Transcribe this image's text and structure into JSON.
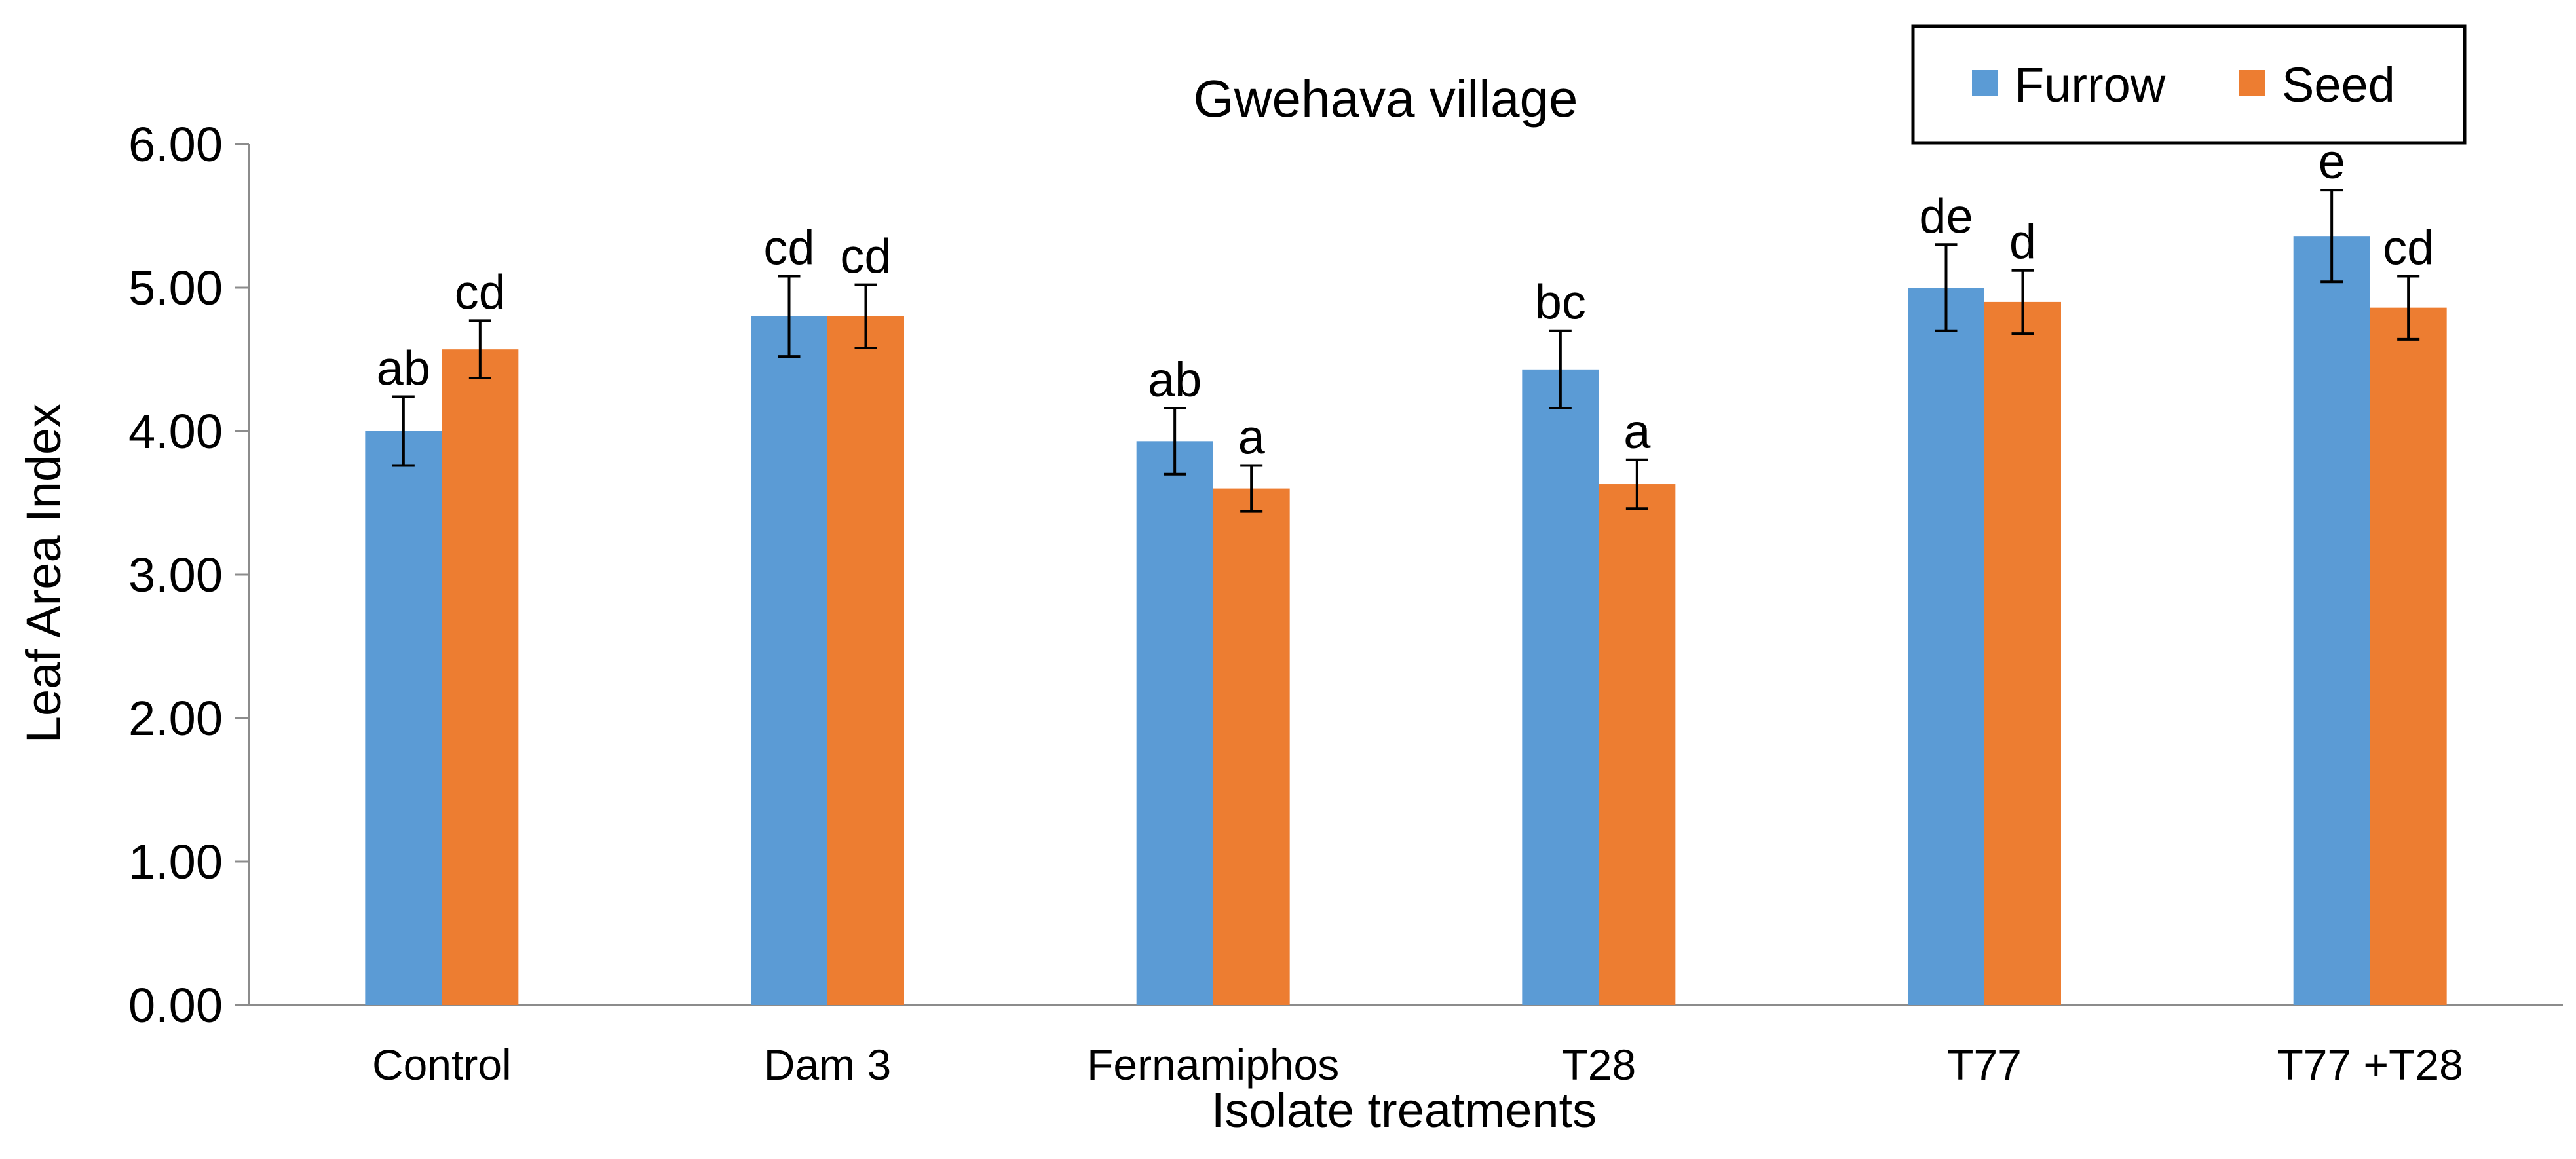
{
  "chart_data": {
    "type": "bar",
    "title": "Gwehava village",
    "xlabel": "Isolate treatments",
    "ylabel": "Leaf Area Index",
    "ylim": [
      0,
      6
    ],
    "yticks": [
      "0.00",
      "1.00",
      "2.00",
      "3.00",
      "4.00",
      "5.00",
      "6.00"
    ],
    "grid": false,
    "legend_position": "top-right",
    "categories": [
      "Control",
      "Dam 3",
      "Fernamiphos",
      "T28",
      "T77",
      "T77 +T28"
    ],
    "series": [
      {
        "name": "Furrow",
        "color": "#5B9BD5",
        "values": [
          4.0,
          4.8,
          3.93,
          4.43,
          5.0,
          5.36
        ],
        "errors": [
          0.24,
          0.28,
          0.23,
          0.27,
          0.3,
          0.32
        ],
        "letters": [
          "ab",
          "cd",
          "ab",
          "bc",
          "de",
          "e"
        ]
      },
      {
        "name": "Seed",
        "color": "#ED7D31",
        "values": [
          4.57,
          4.8,
          3.6,
          3.63,
          4.9,
          4.86
        ],
        "errors": [
          0.2,
          0.22,
          0.16,
          0.17,
          0.22,
          0.22
        ],
        "letters": [
          "cd",
          "cd",
          "a",
          "a",
          "d",
          "cd"
        ]
      }
    ]
  }
}
